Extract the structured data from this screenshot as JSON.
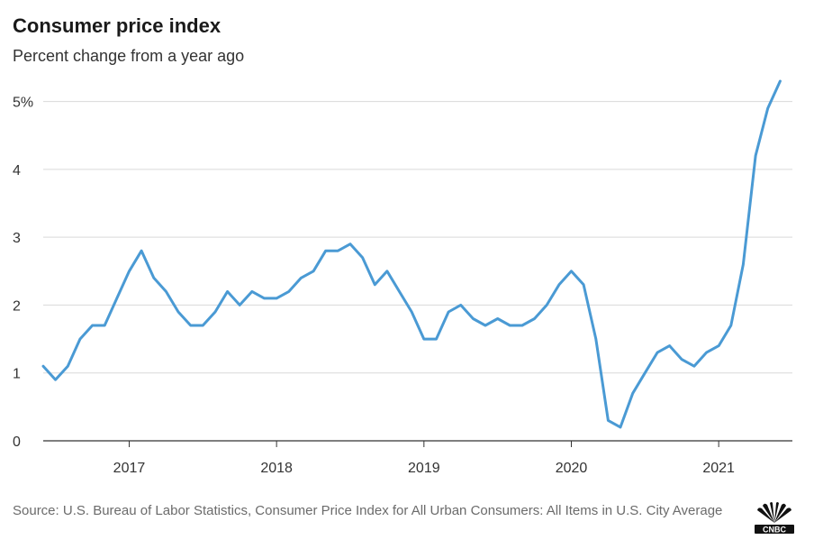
{
  "chart_data": {
    "type": "line",
    "title": "Consumer price index",
    "subtitle": "Percent change from a year ago",
    "source": "Source: U.S. Bureau of Labor Statistics, Consumer Price Index for All Urban Consumers: All Items in U.S. City Average",
    "logo_text": "CNBC",
    "line_color": "#4a9ad4",
    "grid": true,
    "y_ticks": [
      {
        "value": 0,
        "label": "0"
      },
      {
        "value": 1,
        "label": "1"
      },
      {
        "value": 2,
        "label": "2"
      },
      {
        "value": 3,
        "label": "3"
      },
      {
        "value": 4,
        "label": "4"
      },
      {
        "value": 5,
        "label": "5%"
      }
    ],
    "ylim": [
      0,
      5.3
    ],
    "x_ticks": [
      {
        "value": "2017-01",
        "label": "2017"
      },
      {
        "value": "2018-01",
        "label": "2018"
      },
      {
        "value": "2019-01",
        "label": "2019"
      },
      {
        "value": "2020-01",
        "label": "2020"
      },
      {
        "value": "2021-01",
        "label": "2021"
      }
    ],
    "xlim": [
      "2016-06",
      "2021-07"
    ],
    "x": [
      "2016-06",
      "2016-07",
      "2016-08",
      "2016-09",
      "2016-10",
      "2016-11",
      "2016-12",
      "2017-01",
      "2017-02",
      "2017-03",
      "2017-04",
      "2017-05",
      "2017-06",
      "2017-07",
      "2017-08",
      "2017-09",
      "2017-10",
      "2017-11",
      "2017-12",
      "2018-01",
      "2018-02",
      "2018-03",
      "2018-04",
      "2018-05",
      "2018-06",
      "2018-07",
      "2018-08",
      "2018-09",
      "2018-10",
      "2018-11",
      "2018-12",
      "2019-01",
      "2019-02",
      "2019-03",
      "2019-04",
      "2019-05",
      "2019-06",
      "2019-07",
      "2019-08",
      "2019-09",
      "2019-10",
      "2019-11",
      "2019-12",
      "2020-01",
      "2020-02",
      "2020-03",
      "2020-04",
      "2020-05",
      "2020-06",
      "2020-07",
      "2020-08",
      "2020-09",
      "2020-10",
      "2020-11",
      "2020-12",
      "2021-01",
      "2021-02",
      "2021-03",
      "2021-04",
      "2021-05",
      "2021-06"
    ],
    "series": [
      {
        "values": [
          1.1,
          0.9,
          1.1,
          1.5,
          1.7,
          1.7,
          2.1,
          2.5,
          2.8,
          2.4,
          2.2,
          1.9,
          1.7,
          1.7,
          1.9,
          2.2,
          2.0,
          2.2,
          2.1,
          2.1,
          2.2,
          2.4,
          2.5,
          2.8,
          2.8,
          2.9,
          2.7,
          2.3,
          2.5,
          2.2,
          1.9,
          1.5,
          1.5,
          1.9,
          2.0,
          1.8,
          1.7,
          1.8,
          1.7,
          1.7,
          1.8,
          2.0,
          2.3,
          2.5,
          2.3,
          1.5,
          0.3,
          0.2,
          0.7,
          1.0,
          1.3,
          1.4,
          1.2,
          1.1,
          1.3,
          1.4,
          1.7,
          2.6,
          4.2,
          4.9,
          5.3
        ]
      }
    ]
  }
}
